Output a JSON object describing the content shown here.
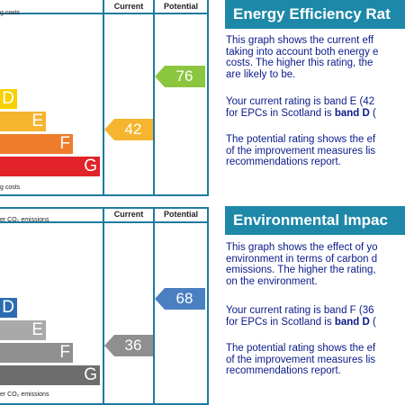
{
  "top_chart": {
    "top_note": "g costs",
    "bottom_note": "g costs",
    "current_header": "Current",
    "potential_header": "Potential",
    "bands": [
      {
        "letter": "D",
        "color": "#f7d000"
      },
      {
        "letter": "E",
        "color": "#f5b52f"
      },
      {
        "letter": "F",
        "color": "#ee7d2b"
      },
      {
        "letter": "G",
        "color": "#e2232a"
      }
    ],
    "current_value": "42",
    "current_color": "#f5b52f",
    "potential_value": "76",
    "potential_color": "#8cc63f"
  },
  "bottom_chart": {
    "top_note": "er CO₂ emissions",
    "bottom_note": "er CO₂ emissions",
    "current_header": "Current",
    "potential_header": "Potential",
    "bands": [
      {
        "letter": "D",
        "color": "#2b6cb0"
      },
      {
        "letter": "E",
        "color": "#a9a9a9"
      },
      {
        "letter": "F",
        "color": "#8f8f8f"
      },
      {
        "letter": "G",
        "color": "#6d6d6d"
      }
    ],
    "current_value": "36",
    "current_color": "#8f8f8f",
    "potential_value": "68",
    "potential_color": "#4a7fc1"
  },
  "energy_panel": {
    "title": "Energy Efficiency Rat",
    "para1": "This graph shows the current eff\ntaking into account both energy e\ncosts. The higher this rating, the\nare likely to be.",
    "para2_line1": "Your current rating is band E (42",
    "para2_prefix": "for EPCs in Scotland is ",
    "para2_bold": "band D",
    "para2_suffix": " (",
    "para3": "The potential rating shows the ef\nof the improvement measures lis\nrecommendations report."
  },
  "env_panel": {
    "title": "Environmental Impac",
    "para1": "This graph shows the effect of yo\nenvironment in terms of carbon d\nemissions. The higher the rating,\non the environment.",
    "para2_line1": "Your current rating is band F (36",
    "para2_prefix": "for EPCs in Scotland is ",
    "para2_bold": "band D",
    "para2_suffix": " (",
    "para3": "The potential rating shows the ef\nof the improvement measures lis\nrecommendations report."
  }
}
